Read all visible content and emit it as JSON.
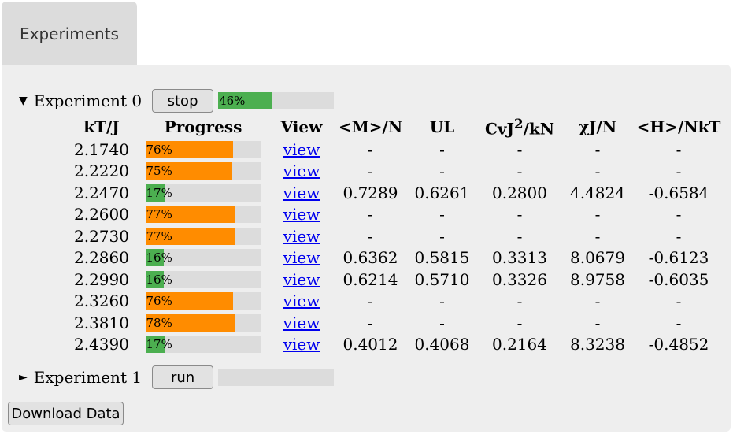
{
  "tabs": [
    {
      "label": "Experiments"
    }
  ],
  "colors": {
    "green": "#4caf50",
    "orange": "#ff8c00",
    "track": "#dcdcdc"
  },
  "experiments": [
    {
      "label": "Experiment 0",
      "expanded": true,
      "button": "stop",
      "progress": 0.46,
      "progress_label": "46%"
    },
    {
      "label": "Experiment 1",
      "expanded": false,
      "button": "run",
      "progress": 0.0,
      "progress_label": ""
    }
  ],
  "table": {
    "columns": [
      "kT/J",
      "Progress",
      "View",
      "<M>/N",
      "UL",
      "CvJ",
      "χJ/N",
      "<H>/NkT"
    ],
    "cv_sup": "2",
    "cv_tail": "/kN",
    "rows": [
      {
        "kt": "2.1740",
        "p": 0.76,
        "pl": "76%",
        "state": "running",
        "view": "view",
        "m": "-",
        "ul": "-",
        "cv": "-",
        "chi": "-",
        "h": "-"
      },
      {
        "kt": "2.2220",
        "p": 0.75,
        "pl": "75%",
        "state": "running",
        "view": "view",
        "m": "-",
        "ul": "-",
        "cv": "-",
        "chi": "-",
        "h": "-"
      },
      {
        "kt": "2.2470",
        "p": 0.17,
        "pl": "17%",
        "state": "done",
        "view": "view",
        "m": "0.7289",
        "ul": "0.6261",
        "cv": "0.2800",
        "chi": "4.4824",
        "h": "-0.6584"
      },
      {
        "kt": "2.2600",
        "p": 0.77,
        "pl": "77%",
        "state": "running",
        "view": "view",
        "m": "-",
        "ul": "-",
        "cv": "-",
        "chi": "-",
        "h": "-"
      },
      {
        "kt": "2.2730",
        "p": 0.77,
        "pl": "77%",
        "state": "running",
        "view": "view",
        "m": "-",
        "ul": "-",
        "cv": "-",
        "chi": "-",
        "h": "-"
      },
      {
        "kt": "2.2860",
        "p": 0.16,
        "pl": "16%",
        "state": "done",
        "view": "view",
        "m": "0.6362",
        "ul": "0.5815",
        "cv": "0.3313",
        "chi": "8.0679",
        "h": "-0.6123"
      },
      {
        "kt": "2.2990",
        "p": 0.16,
        "pl": "16%",
        "state": "done",
        "view": "view",
        "m": "0.6214",
        "ul": "0.5710",
        "cv": "0.3326",
        "chi": "8.9758",
        "h": "-0.6035"
      },
      {
        "kt": "2.3260",
        "p": 0.76,
        "pl": "76%",
        "state": "running",
        "view": "view",
        "m": "-",
        "ul": "-",
        "cv": "-",
        "chi": "-",
        "h": "-"
      },
      {
        "kt": "2.3810",
        "p": 0.78,
        "pl": "78%",
        "state": "running",
        "view": "view",
        "m": "-",
        "ul": "-",
        "cv": "-",
        "chi": "-",
        "h": "-"
      },
      {
        "kt": "2.4390",
        "p": 0.17,
        "pl": "17%",
        "state": "done",
        "view": "view",
        "m": "0.4012",
        "ul": "0.4068",
        "cv": "0.2164",
        "chi": "8.3238",
        "h": "-0.4852"
      }
    ]
  },
  "download_label": "Download Data"
}
